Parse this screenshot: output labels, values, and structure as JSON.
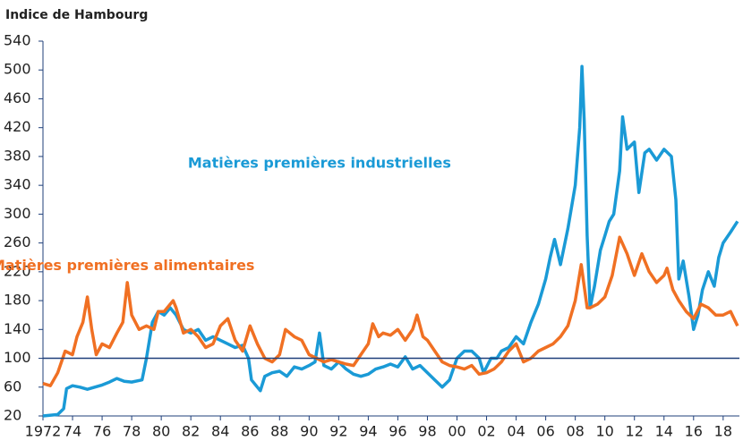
{
  "chart_data": {
    "type": "line",
    "title": "Indice de Hambourg",
    "xlim": [
      1972,
      2019.1
    ],
    "ylim": [
      20,
      540
    ],
    "xticks": [
      1972,
      {
        "value": 1974,
        "label": "74"
      },
      {
        "value": 1976,
        "label": "76"
      },
      {
        "value": 1978,
        "label": "78"
      },
      {
        "value": 1980,
        "label": "80"
      },
      {
        "value": 1982,
        "label": "82"
      },
      {
        "value": 1984,
        "label": "84"
      },
      {
        "value": 1986,
        "label": "86"
      },
      {
        "value": 1988,
        "label": "88"
      },
      {
        "value": 1990,
        "label": "90"
      },
      {
        "value": 1992,
        "label": "92"
      },
      {
        "value": 1994,
        "label": "94"
      },
      {
        "value": 1996,
        "label": "96"
      },
      {
        "value": 1998,
        "label": "98"
      },
      {
        "value": 2000,
        "label": "00"
      },
      {
        "value": 2002,
        "label": "02"
      },
      {
        "value": 2004,
        "label": "04"
      },
      {
        "value": 2006,
        "label": "06"
      },
      {
        "value": 2008,
        "label": "08"
      },
      {
        "value": 2010,
        "label": "10"
      },
      {
        "value": 2012,
        "label": "12"
      },
      {
        "value": 2014,
        "label": "14"
      },
      {
        "value": 2016,
        "label": "16"
      },
      {
        "value": 2018,
        "label": "18"
      }
    ],
    "yticks": [
      20,
      60,
      100,
      140,
      180,
      220,
      260,
      300,
      340,
      380,
      420,
      460,
      500,
      540
    ],
    "reference_line": 100,
    "reference_color": "#1f3f7a",
    "series": [
      {
        "name": "Matières premières industrielles",
        "color": "#1a9ad6",
        "x": [
          1972.0,
          1973.0,
          1973.4,
          1973.6,
          1974.0,
          1974.5,
          1975,
          1975.5,
          1976,
          1976.5,
          1977,
          1977.5,
          1978,
          1978.7,
          1979.0,
          1979.4,
          1979.8,
          1980.2,
          1980.6,
          1981,
          1981.5,
          1982,
          1982.5,
          1983,
          1983.5,
          1984,
          1984.5,
          1985,
          1985.5,
          1985.9,
          1986.1,
          1986.5,
          1986.7,
          1987,
          1987.5,
          1988,
          1988.5,
          1989,
          1989.5,
          1990,
          1990.4,
          1990.7,
          1991,
          1991.5,
          1992,
          1992.5,
          1993,
          1993.5,
          1994,
          1994.5,
          1995,
          1995.5,
          1996,
          1996.5,
          1997,
          1997.5,
          1998,
          1998.5,
          1999,
          1999.5,
          2000,
          2000.5,
          2001,
          2001.5,
          2001.8,
          2002.3,
          2002.7,
          2003,
          2003.5,
          2004,
          2004.5,
          2005,
          2005.5,
          2006,
          2006.3,
          2006.6,
          2007,
          2007.5,
          2008,
          2008.3,
          2008.45,
          2008.6,
          2008.8,
          2009,
          2009.3,
          2009.7,
          2010,
          2010.3,
          2010.6,
          2011,
          2011.2,
          2011.5,
          2012,
          2012.3,
          2012.7,
          2013,
          2013.5,
          2014,
          2014.5,
          2014.8,
          2015,
          2015.3,
          2015.7,
          2016,
          2016.3,
          2016.6,
          2017,
          2017.4,
          2017.7,
          2018,
          2018.5,
          2018.97
        ],
        "values": [
          20,
          22,
          30,
          58,
          62,
          60,
          57,
          60,
          63,
          67,
          72,
          68,
          67,
          70,
          100,
          150,
          165,
          160,
          170,
          160,
          140,
          135,
          140,
          125,
          130,
          125,
          120,
          115,
          118,
          100,
          70,
          60,
          55,
          75,
          80,
          82,
          75,
          88,
          85,
          90,
          95,
          135,
          90,
          85,
          95,
          85,
          78,
          75,
          78,
          85,
          88,
          92,
          88,
          102,
          85,
          90,
          80,
          70,
          60,
          70,
          100,
          110,
          110,
          100,
          80,
          100,
          100,
          110,
          115,
          130,
          120,
          150,
          175,
          210,
          240,
          265,
          230,
          280,
          340,
          420,
          505,
          430,
          270,
          170,
          200,
          250,
          270,
          290,
          300,
          360,
          435,
          390,
          400,
          330,
          385,
          390,
          375,
          390,
          380,
          320,
          210,
          235,
          185,
          140,
          160,
          195,
          220,
          200,
          240,
          260,
          275,
          290
        ],
        "label_pos": [
          1990.7,
          370
        ]
      },
      {
        "name": "Matières premières alimentaires",
        "color": "#f07023",
        "x": [
          1972,
          1972.5,
          1973,
          1973.5,
          1974,
          1974.3,
          1974.7,
          1975,
          1975.3,
          1975.6,
          1976,
          1976.5,
          1977,
          1977.4,
          1977.7,
          1978,
          1978.5,
          1979,
          1979.5,
          1979.8,
          1980.2,
          1980.8,
          1981,
          1981.5,
          1982,
          1982.5,
          1983,
          1983.5,
          1984,
          1984.5,
          1985,
          1985.5,
          1986,
          1986.5,
          1987,
          1987.5,
          1988,
          1988.4,
          1989,
          1989.5,
          1990,
          1990.5,
          1991,
          1991.5,
          1992,
          1992.5,
          1993,
          1993.5,
          1994,
          1994.3,
          1994.7,
          1995,
          1995.5,
          1996,
          1996.5,
          1997,
          1997.3,
          1997.7,
          1998,
          1998.5,
          1999,
          1999.5,
          2000,
          2000.5,
          2001,
          2001.5,
          2002,
          2002.5,
          2003,
          2003.5,
          2004,
          2004.5,
          2005,
          2005.5,
          2006,
          2006.5,
          2007,
          2007.5,
          2008,
          2008.4,
          2008.8,
          2009,
          2009.5,
          2010,
          2010.5,
          2011,
          2011.5,
          2012,
          2012.5,
          2013,
          2013.5,
          2014,
          2014.2,
          2014.6,
          2015,
          2015.5,
          2016,
          2016.5,
          2017,
          2017.5,
          2018,
          2018.5,
          2018.97
        ],
        "values": [
          65,
          62,
          80,
          110,
          105,
          130,
          150,
          185,
          140,
          105,
          120,
          115,
          135,
          150,
          205,
          160,
          140,
          145,
          140,
          165,
          165,
          180,
          170,
          135,
          140,
          130,
          115,
          120,
          145,
          155,
          125,
          110,
          145,
          120,
          100,
          95,
          105,
          140,
          130,
          125,
          105,
          100,
          95,
          98,
          95,
          92,
          90,
          105,
          120,
          148,
          130,
          135,
          132,
          140,
          125,
          140,
          160,
          130,
          125,
          110,
          95,
          90,
          88,
          85,
          90,
          78,
          80,
          85,
          95,
          110,
          120,
          95,
          100,
          110,
          115,
          120,
          130,
          145,
          180,
          230,
          170,
          170,
          175,
          185,
          215,
          268,
          245,
          215,
          245,
          220,
          205,
          215,
          225,
          195,
          180,
          165,
          155,
          175,
          170,
          160,
          160,
          165,
          145
        ],
        "label_pos": [
          1977.4,
          228
        ]
      }
    ]
  }
}
